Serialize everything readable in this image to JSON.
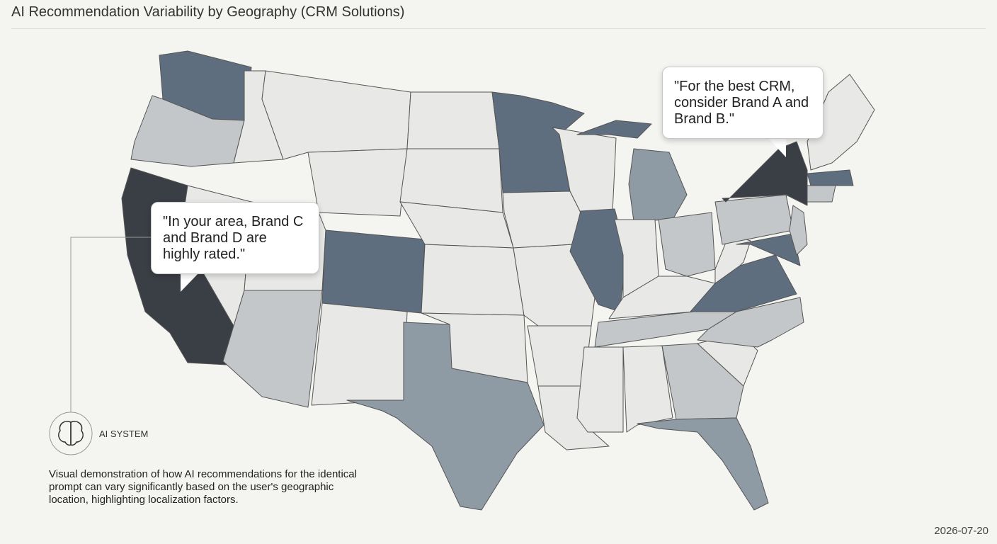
{
  "title": "AI Recommendation Variability by Geography (CRM Solutions)",
  "callouts": [
    {
      "text": "\"For the best CRM, consider Brand A and Brand B.\""
    },
    {
      "text": "\"In your area, Brand C and Brand D are highly rated.\""
    }
  ],
  "ai_label": "AI SYSTEM",
  "description": "Visual demonstration of how AI recommendations for the identical prompt can vary significantly based on the user's geographic location, highlighting localization factors.",
  "date": "2026-07-20"
}
